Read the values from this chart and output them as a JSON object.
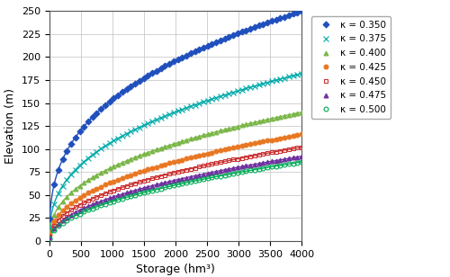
{
  "xlabel": "Storage (hm³)",
  "ylabel": "Elevation (m)",
  "xlim": [
    0,
    4000
  ],
  "ylim": [
    0,
    250
  ],
  "xticks": [
    0,
    500,
    1000,
    1500,
    2000,
    2500,
    3000,
    3500,
    4000
  ],
  "yticks": [
    0,
    25,
    50,
    75,
    100,
    125,
    150,
    175,
    200,
    225,
    250
  ],
  "kappa_values": [
    0.35,
    0.375,
    0.4,
    0.425,
    0.45,
    0.475,
    0.5
  ],
  "colors": [
    "#1F4FBD",
    "#00AAAA",
    "#7AB648",
    "#E87722",
    "#CC3333",
    "#7030A0",
    "#00AA55"
  ],
  "markers": [
    "D",
    "x",
    "^",
    "o",
    "s",
    "^",
    "o"
  ],
  "fillstyles": [
    "full",
    "full",
    "full",
    "full",
    "none",
    "full",
    "none"
  ],
  "endpoints": [
    250,
    182,
    140,
    116,
    102,
    92,
    86
  ],
  "S_max": 4000,
  "n_markers": 60,
  "legend_labels": [
    "κ = 0.350",
    "κ = 0.375",
    "κ = 0.400",
    "κ = 0.425",
    "κ = 0.450",
    "κ = 0.475",
    "κ = 0.500"
  ],
  "grid_color": "#C0C0C0",
  "bg_color": "#FFFFFF",
  "label_fontsize": 9,
  "tick_fontsize": 8,
  "legend_fontsize": 7.5,
  "linewidth": 1.0,
  "markersize_small": 3.5,
  "markersize_x": 4.5
}
